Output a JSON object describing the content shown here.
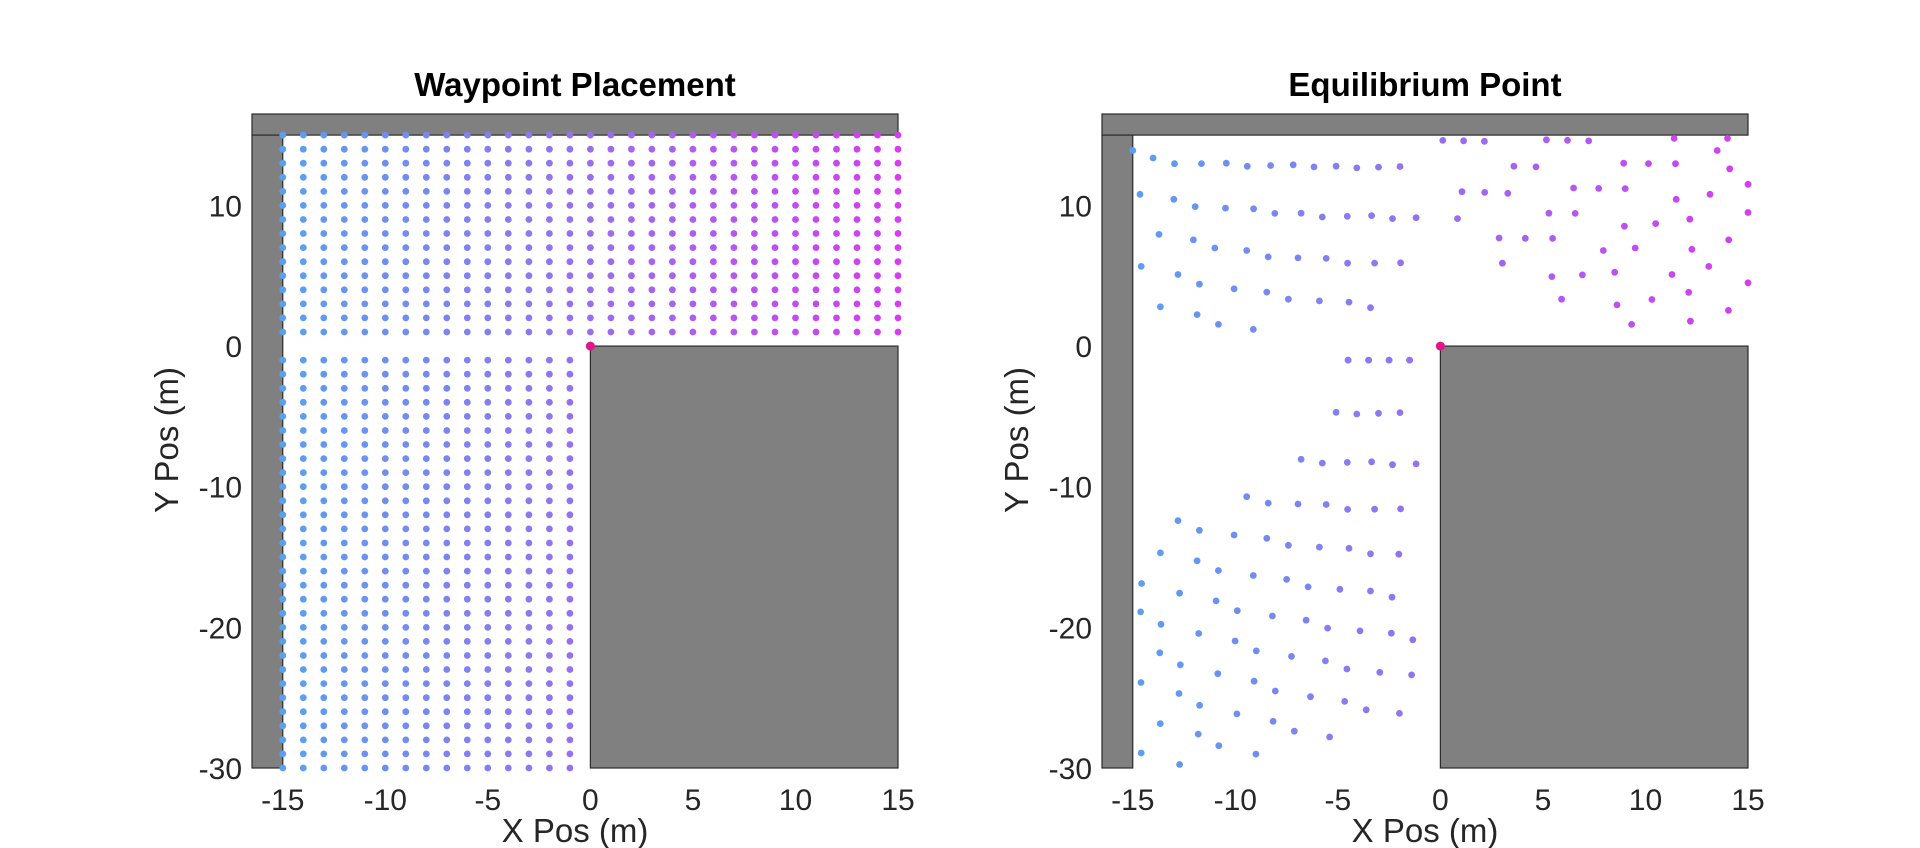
{
  "figure": {
    "background": "#ffffff",
    "obstacle_color": "#808080",
    "point_color_left": "#5aa0f0",
    "point_color_right": "#d63cf0",
    "origin_marker_color": "#e0158a"
  },
  "chart_data": [
    {
      "type": "scatter",
      "title": "Waypoint Placement",
      "xlabel": "X Pos (m)",
      "ylabel": "Y Pos (m)",
      "xlim": [
        -16.5,
        15
      ],
      "ylim": [
        -30,
        16.5
      ],
      "xticks": [
        -15,
        -10,
        -5,
        0,
        5,
        10,
        15
      ],
      "yticks": [
        -30,
        -20,
        -10,
        0,
        10
      ],
      "grid": false,
      "legend": "none",
      "obstacles": [
        {
          "name": "top-wall",
          "x": [
            -16.5,
            15
          ],
          "y": [
            15,
            16.5
          ]
        },
        {
          "name": "left-wall",
          "x": [
            -16.5,
            -15
          ],
          "y": [
            -30,
            15
          ]
        },
        {
          "name": "corner-block",
          "x": [
            0,
            15
          ],
          "y": [
            -30,
            0
          ]
        }
      ],
      "series": [
        {
          "region": "upper-waypoints",
          "x_range": [
            -15,
            15
          ],
          "y_range": [
            1,
            15
          ],
          "spacing": 1
        },
        {
          "region": "lower-waypoints",
          "x_range": [
            -15,
            -1
          ],
          "y_range": [
            -30,
            -1
          ],
          "spacing": 1
        }
      ],
      "marker": {
        "x": 0,
        "y": 0
      }
    },
    {
      "type": "scatter",
      "title": "Equilibrium Point",
      "xlabel": "X Pos (m)",
      "ylabel": "Y Pos (m)",
      "xlim": [
        -16.5,
        15
      ],
      "ylim": [
        -30,
        16.5
      ],
      "xticks": [
        -15,
        -10,
        -5,
        0,
        5,
        10,
        15
      ],
      "yticks": [
        -30,
        -20,
        -10,
        0,
        10
      ],
      "grid": false,
      "legend": "none",
      "obstacles": [
        {
          "name": "top-wall",
          "x": [
            -16.5,
            15
          ],
          "y": [
            15,
            16.5
          ]
        },
        {
          "name": "left-wall",
          "x": [
            -16.5,
            -15
          ],
          "y": [
            -30,
            15
          ]
        },
        {
          "name": "corner-block",
          "x": [
            0,
            15
          ],
          "y": [
            -30,
            0
          ]
        }
      ],
      "series": [
        {
          "region": "upper-left-arcs",
          "arc_center": [
            -16.5,
            16.5
          ],
          "radius_range": [
            2,
            19
          ],
          "clip_x": [
            -15,
            -1
          ],
          "clip_y": [
            1,
            15
          ]
        },
        {
          "region": "upper-right-arcs",
          "arc_center": [
            15,
            16.5
          ],
          "radius_range": [
            2,
            16
          ],
          "clip_x": [
            0,
            15
          ],
          "clip_y": [
            1,
            15
          ]
        },
        {
          "region": "lower-left-arcs",
          "arc_center": [
            -16.5,
            -1
          ],
          "radius_range": [
            12,
            29
          ],
          "clip_x": [
            -15,
            -1
          ],
          "clip_y": [
            -30,
            -1
          ]
        }
      ],
      "marker": {
        "x": 0,
        "y": 0
      }
    }
  ]
}
